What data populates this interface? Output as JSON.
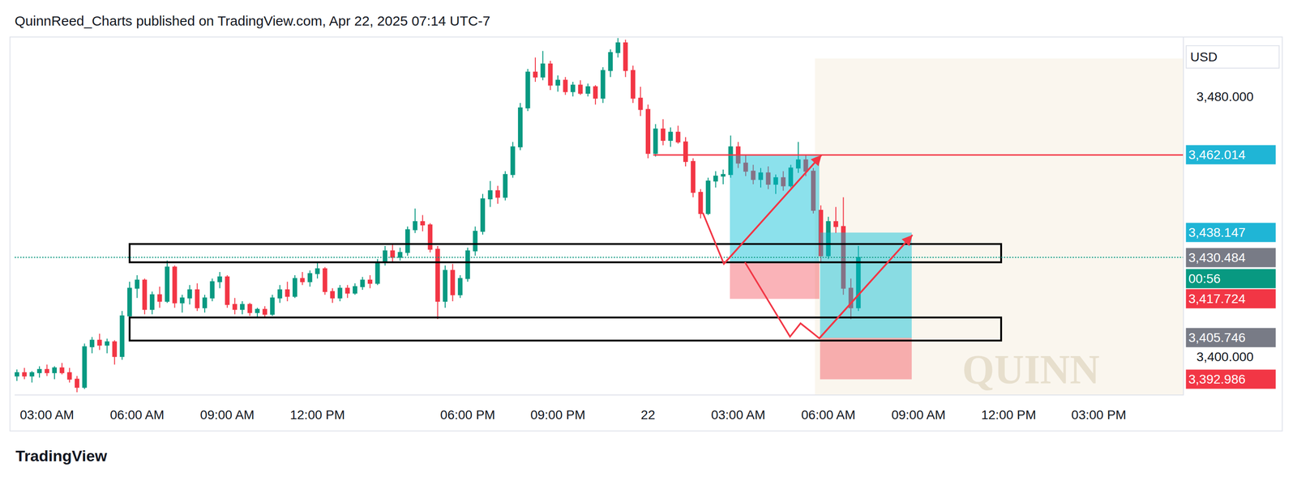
{
  "header": "QuinnReed_Charts published on TradingView.com, Apr 22, 2025 07:14 UTC-7",
  "footer": "TradingView",
  "chart_data": {
    "type": "candlestick",
    "currency": "USD",
    "categories": [
      null,
      null,
      null,
      null,
      "03:00 AM",
      null,
      null,
      null,
      null,
      null,
      null,
      null,
      null,
      null,
      null,
      null,
      "06:00 AM",
      null,
      null,
      null,
      null,
      null,
      null,
      null,
      null,
      null,
      null,
      null,
      "09:00 AM",
      null,
      null,
      null,
      null,
      null,
      null,
      null,
      null,
      null,
      null,
      null,
      "12:00 PM",
      null,
      null,
      null,
      null,
      null,
      null,
      null,
      null,
      null,
      null,
      null,
      null,
      null,
      null,
      null,
      null,
      null,
      null,
      null,
      "06:00 PM",
      null,
      null,
      null,
      null,
      null,
      null,
      null,
      null,
      null,
      null,
      null,
      "09:00 PM",
      null,
      null,
      null,
      null,
      null,
      null,
      null,
      null,
      null,
      null,
      null,
      "22",
      null,
      null,
      null,
      null,
      null,
      null,
      null,
      null,
      null,
      null,
      null,
      "03:00 AM",
      null,
      null,
      null,
      null,
      null,
      null,
      null,
      null,
      null,
      null,
      null,
      "06:00 AM",
      null,
      null,
      null,
      null,
      null,
      null,
      null,
      null,
      null,
      null,
      null,
      "09:00 AM",
      null,
      null,
      null,
      null,
      null,
      null,
      null,
      null,
      null,
      null,
      null,
      "12:00 PM",
      null,
      null,
      null,
      null,
      null,
      null,
      null,
      null,
      null,
      null,
      null,
      "03:00 PM",
      null,
      null,
      null,
      null,
      null,
      null,
      null,
      null,
      null,
      null
    ],
    "open": [
      3394,
      3395,
      3394,
      3395,
      3396,
      3395,
      3396.5,
      3395,
      3393,
      3390.5,
      3403,
      3405,
      3403.5,
      3404.5,
      3400,
      3412.5,
      3421,
      3423.5,
      3414.5,
      3419,
      3417,
      3427.5,
      3416.5,
      3418,
      3420.5,
      3415,
      3418,
      3423,
      3424.5,
      3416,
      3414.5,
      3416,
      3413.5,
      3414.5,
      3413,
      3418,
      3420.5,
      3418.5,
      3424,
      3423,
      3425.5,
      3427,
      3420,
      3418,
      3421,
      3419.5,
      3421.5,
      3423.5,
      3422.5,
      3429,
      3432.5,
      3430.5,
      3432,
      3439,
      3441.5,
      3440.5,
      3433,
      3417,
      3426.5,
      3419,
      3424,
      3432.5,
      3438.5,
      3448.5,
      3451,
      3449,
      3456,
      3464.5,
      3476.5,
      3487.5,
      3486,
      3490,
      3483.5,
      3485,
      3481.5,
      3483.5,
      3481,
      3483,
      3479.5,
      3488,
      3493.5,
      3496.5,
      3488,
      3479.5,
      3476,
      3462.5,
      3470,
      3466.5,
      3469,
      3466,
      3460,
      3450.5,
      3444,
      3454,
      3455.5,
      3456,
      3464.5,
      3459.5,
      3457,
      3454.5,
      3456.5,
      3453,
      3455,
      3452.5,
      3458,
      3460.5,
      3457,
      3445,
      3431,
      3441.5,
      3440,
      3421,
      3415,
      null,
      null,
      null,
      null,
      null,
      null,
      null,
      null,
      null,
      null,
      null,
      null,
      null,
      null,
      null,
      null,
      null,
      null,
      null,
      null,
      null,
      null,
      null,
      null,
      null,
      null,
      null,
      null,
      null,
      null,
      null,
      null,
      null,
      null,
      null,
      null,
      null,
      null,
      null,
      null,
      null,
      null
    ],
    "high": [
      3396,
      3396.5,
      3395.5,
      3397,
      3397.5,
      3397,
      3398,
      3396.5,
      3394,
      3404,
      3406,
      3407,
      3405.5,
      3405,
      3414,
      3423,
      3425,
      3424,
      3420,
      3421.5,
      3429.5,
      3428,
      3419,
      3422,
      3422.5,
      3419,
      3424,
      3426,
      3425,
      3418,
      3417,
      3416.5,
      3415,
      3415.5,
      3419,
      3422,
      3423,
      3425,
      3426,
      3426.5,
      3429,
      3427.5,
      3421,
      3422,
      3422,
      3422.5,
      3424.5,
      3425,
      3430,
      3434,
      3434.5,
      3433.5,
      3440,
      3445.5,
      3443.5,
      3441,
      3434,
      3428,
      3428.5,
      3425,
      3433.5,
      3440,
      3450,
      3454,
      3452.5,
      3457,
      3466,
      3478,
      3488.5,
      3492,
      3494,
      3491,
      3486.5,
      3486,
      3484.5,
      3485,
      3484,
      3483.5,
      3489,
      3494.5,
      3498,
      3497.5,
      3489.5,
      3483,
      3477.5,
      3471.5,
      3473,
      3470.5,
      3471,
      3467.5,
      3461,
      3451.5,
      3455,
      3457,
      3457.5,
      3468,
      3466,
      3462,
      3459,
      3458,
      3458.5,
      3456,
      3457,
      3459,
      3466,
      3462,
      3458,
      3446.5,
      3443,
      3446,
      3449,
      3424,
      3434,
      null,
      null,
      null,
      null,
      null,
      null,
      null,
      null,
      null,
      null,
      null,
      null,
      null,
      null,
      null,
      null,
      null,
      null,
      null,
      null,
      null,
      null,
      null,
      null,
      null,
      null,
      null,
      null,
      null,
      null,
      null,
      null,
      null,
      null,
      null,
      null,
      null,
      null,
      null,
      null,
      null,
      null
    ],
    "low": [
      3392.5,
      3393,
      3392,
      3393.5,
      3394,
      3393,
      3394.5,
      3392,
      3389,
      3390,
      3401,
      3402,
      3401,
      3397.5,
      3399,
      3411,
      3418,
      3413,
      3413,
      3415,
      3416.5,
      3415,
      3413.5,
      3416,
      3414,
      3413.5,
      3417,
      3421,
      3415,
      3413,
      3413,
      3412.5,
      3412,
      3412,
      3412.5,
      3416.5,
      3417,
      3418,
      3422,
      3421.5,
      3424,
      3419,
      3416.5,
      3417,
      3418,
      3419,
      3420.5,
      3421,
      3422,
      3428,
      3429,
      3429.5,
      3431,
      3438,
      3438.5,
      3432,
      3411.5,
      3415,
      3417,
      3418,
      3423,
      3431,
      3437.5,
      3446,
      3447,
      3448,
      3455,
      3463.5,
      3475.5,
      3484.5,
      3485,
      3482,
      3481.5,
      3480.5,
      3480,
      3480.5,
      3480,
      3477.5,
      3478,
      3486,
      3492,
      3486,
      3478,
      3474,
      3461,
      3461.5,
      3465,
      3464.5,
      3465.5,
      3458.5,
      3449,
      3442.5,
      3443.5,
      3452,
      3453,
      3455,
      3458,
      3455.5,
      3453,
      3452,
      3451.5,
      3450,
      3451,
      3452,
      3456.5,
      3455.5,
      3444,
      3429,
      3430,
      3438,
      3419,
      3411.5,
      3414,
      null,
      null,
      null,
      null,
      null,
      null,
      null,
      null,
      null,
      null,
      null,
      null,
      null,
      null,
      null,
      null,
      null,
      null,
      null,
      null,
      null,
      null,
      null,
      null,
      null,
      null,
      null,
      null,
      null,
      null,
      null,
      null,
      null,
      null,
      null,
      null,
      null,
      null,
      null,
      null,
      null,
      null
    ],
    "close": [
      3395,
      3394,
      3395,
      3396,
      3395,
      3396.5,
      3395,
      3393,
      3390.5,
      3403,
      3405,
      3403.5,
      3404.5,
      3400,
      3412.5,
      3421,
      3423.5,
      3414.5,
      3419,
      3417,
      3427.5,
      3416.5,
      3418,
      3420.5,
      3415,
      3418,
      3423,
      3424.5,
      3416,
      3414.5,
      3416,
      3413.5,
      3414.5,
      3413,
      3418,
      3420.5,
      3418.5,
      3424,
      3423,
      3425.5,
      3427,
      3420,
      3418,
      3421,
      3419.5,
      3421.5,
      3423.5,
      3422.5,
      3429,
      3432.5,
      3430.5,
      3432,
      3439,
      3441.5,
      3440.5,
      3433,
      3417,
      3426.5,
      3419,
      3424,
      3432.5,
      3438.5,
      3448.5,
      3451,
      3449,
      3456,
      3464.5,
      3476.5,
      3487.5,
      3486,
      3490,
      3483.5,
      3485,
      3481.5,
      3483.5,
      3481,
      3483,
      3479.5,
      3488,
      3493.5,
      3496.5,
      3488,
      3479.5,
      3476,
      3462.5,
      3470,
      3466.5,
      3469,
      3466,
      3460,
      3450.5,
      3444,
      3454,
      3455.5,
      3456,
      3464.5,
      3459.5,
      3457,
      3454.5,
      3456.5,
      3453,
      3455,
      3452.5,
      3458,
      3460.5,
      3457,
      3445,
      3431,
      3441.5,
      3440,
      3421,
      3415,
      3430.484,
      null,
      null,
      null,
      null,
      null,
      null,
      null,
      null,
      null,
      null,
      null,
      null,
      null,
      null,
      null,
      null,
      null,
      null,
      null,
      null,
      null,
      null,
      null,
      null,
      null,
      null,
      null,
      null,
      null,
      null,
      null,
      null,
      null,
      null,
      null,
      null,
      null,
      null,
      null,
      null,
      null,
      null
    ],
    "ylim": [
      3388.3,
      3498.3
    ],
    "yticks": [
      {
        "value": 3400,
        "label": "3,400.000"
      },
      {
        "value": 3480,
        "label": "3,480.000"
      }
    ],
    "grid": false,
    "price_labels": [
      {
        "value": 3462.014,
        "label": "3,462.014",
        "color": "#1fb5d6"
      },
      {
        "value": 3438.147,
        "label": "3,438.147",
        "color": "#1fb5d6"
      },
      {
        "value": 3430.484,
        "label": "3,430.484",
        "color": "#787b86",
        "countdown": "00:56"
      },
      {
        "value": 3417.724,
        "label": "3,417.724",
        "color": "#f23645"
      },
      {
        "value": 3405.746,
        "label": "3,405.746",
        "color": "#787b86"
      },
      {
        "value": 3392.986,
        "label": "3,392.986",
        "color": "#f23645"
      }
    ],
    "level": {
      "x0": 84.7,
      "y": 3462.014
    },
    "zones": [
      {
        "x0": 15,
        "x1": 131,
        "y0": 3429,
        "y1": 3434.6
      },
      {
        "x0": 15,
        "x1": 131,
        "y0": 3404.9,
        "y1": 3412
      }
    ],
    "positions": [
      {
        "x0": 94.9,
        "x1": 106.8,
        "entry": 3429,
        "target": 3462.014,
        "stop": 3417.724
      },
      {
        "x0": 106.9,
        "x1": 119.1,
        "entry": 3405.746,
        "target": 3438.147,
        "stop": 3392.986
      }
    ],
    "arrows": [
      {
        "x": [
          91.3,
          94.1,
          107.1
        ],
        "y": [
          3444.2,
          3428.5,
          3462
        ]
      },
      {
        "x": [
          96.9,
          102.9,
          104.3,
          106.8,
          119.2
        ],
        "y": [
          3429,
          3406.1,
          3410.2,
          3405.6,
          3437.4
        ]
      }
    ],
    "watermark": "QUINN"
  }
}
